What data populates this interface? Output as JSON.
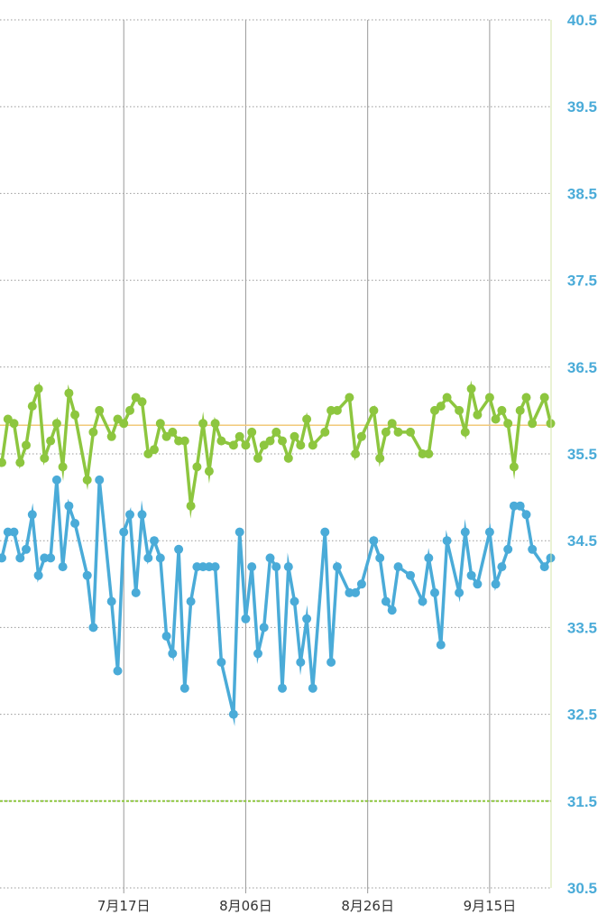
{
  "chart_data": {
    "type": "line",
    "title": "",
    "xlabel": "",
    "ylabel": "",
    "ylim": [
      30.5,
      40.5
    ],
    "yticks": [
      "40.5",
      "39.5",
      "38.5",
      "37.5",
      "36.5",
      "35.5",
      "34.5",
      "33.5",
      "32.5",
      "31.5",
      "30.5"
    ],
    "xticks": [
      {
        "label": "7月17日",
        "day": 20
      },
      {
        "label": "8月06日",
        "day": 40
      },
      {
        "label": "8月26日",
        "day": 60
      },
      {
        "label": "9月15日",
        "day": 80
      }
    ],
    "xlim": [
      0,
      90
    ],
    "grid": true,
    "legend": "none",
    "reference_lines": [
      {
        "value": 35.83,
        "color": "#f2c97a",
        "style": "solid"
      },
      {
        "value": 31.5,
        "color": "#8dc63f",
        "style": "dashed"
      }
    ],
    "series": [
      {
        "color": "#8dc63f",
        "points": [
          [
            0,
            35.4
          ],
          [
            1,
            35.9
          ],
          [
            2,
            35.85
          ],
          [
            3,
            35.4
          ],
          [
            4,
            35.6
          ],
          [
            5,
            36.05
          ],
          [
            6,
            36.25
          ],
          [
            7,
            35.45
          ],
          [
            8,
            35.65
          ],
          [
            9,
            35.85
          ],
          [
            10,
            35.35
          ],
          [
            11,
            36.2
          ],
          [
            12,
            35.95
          ],
          [
            14,
            35.2
          ],
          [
            15,
            35.75
          ],
          [
            16,
            36.0
          ],
          [
            18,
            35.7
          ],
          [
            19,
            35.9
          ],
          [
            20,
            35.85
          ],
          [
            21,
            36.0
          ],
          [
            22,
            36.15
          ],
          [
            23,
            36.1
          ],
          [
            24,
            35.5
          ],
          [
            25,
            35.55
          ],
          [
            26,
            35.85
          ],
          [
            27,
            35.7
          ],
          [
            28,
            35.75
          ],
          [
            29,
            35.65
          ],
          [
            30,
            35.65
          ],
          [
            31,
            34.9
          ],
          [
            32,
            35.35
          ],
          [
            33,
            35.85
          ],
          [
            34,
            35.3
          ],
          [
            35,
            35.85
          ],
          [
            36,
            35.65
          ],
          [
            38,
            35.6
          ],
          [
            39,
            35.7
          ],
          [
            40,
            35.6
          ],
          [
            41,
            35.75
          ],
          [
            42,
            35.45
          ],
          [
            43,
            35.6
          ],
          [
            44,
            35.65
          ],
          [
            45,
            35.75
          ],
          [
            46,
            35.65
          ],
          [
            47,
            35.45
          ],
          [
            48,
            35.7
          ],
          [
            49,
            35.6
          ],
          [
            50,
            35.9
          ],
          [
            51,
            35.6
          ],
          [
            53,
            35.75
          ],
          [
            54,
            36.0
          ],
          [
            55,
            36.0
          ],
          [
            57,
            36.15
          ],
          [
            58,
            35.5
          ],
          [
            59,
            35.7
          ],
          [
            61,
            36.0
          ],
          [
            62,
            35.45
          ],
          [
            63,
            35.75
          ],
          [
            64,
            35.85
          ],
          [
            65,
            35.75
          ],
          [
            67,
            35.75
          ],
          [
            69,
            35.5
          ],
          [
            70,
            35.5
          ],
          [
            71,
            36.0
          ],
          [
            72,
            36.05
          ],
          [
            73,
            36.15
          ],
          [
            75,
            36.0
          ],
          [
            76,
            35.75
          ],
          [
            77,
            36.25
          ],
          [
            78,
            35.95
          ],
          [
            80,
            36.15
          ],
          [
            81,
            35.9
          ],
          [
            82,
            36.0
          ],
          [
            83,
            35.85
          ],
          [
            84,
            35.35
          ],
          [
            85,
            36.0
          ],
          [
            86,
            36.15
          ],
          [
            87,
            35.85
          ],
          [
            89,
            36.15
          ],
          [
            90,
            35.85
          ]
        ]
      },
      {
        "color": "#4aabd8",
        "points": [
          [
            0,
            34.3
          ],
          [
            1,
            34.6
          ],
          [
            2,
            34.6
          ],
          [
            3,
            34.3
          ],
          [
            4,
            34.4
          ],
          [
            5,
            34.8
          ],
          [
            6,
            34.1
          ],
          [
            7,
            34.3
          ],
          [
            8,
            34.3
          ],
          [
            9,
            35.2
          ],
          [
            10,
            34.2
          ],
          [
            11,
            34.9
          ],
          [
            12,
            34.7
          ],
          [
            14,
            34.1
          ],
          [
            15,
            33.5
          ],
          [
            16,
            35.2
          ],
          [
            18,
            33.8
          ],
          [
            19,
            33.0
          ],
          [
            20,
            34.6
          ],
          [
            21,
            34.8
          ],
          [
            22,
            33.9
          ],
          [
            23,
            34.8
          ],
          [
            24,
            34.3
          ],
          [
            25,
            34.5
          ],
          [
            26,
            34.3
          ],
          [
            27,
            33.4
          ],
          [
            28,
            33.2
          ],
          [
            29,
            34.4
          ],
          [
            30,
            32.8
          ],
          [
            31,
            33.8
          ],
          [
            32,
            34.2
          ],
          [
            33,
            34.2
          ],
          [
            34,
            34.2
          ],
          [
            35,
            34.2
          ],
          [
            36,
            33.1
          ],
          [
            38,
            32.5
          ],
          [
            39,
            34.6
          ],
          [
            40,
            33.6
          ],
          [
            41,
            34.2
          ],
          [
            42,
            33.2
          ],
          [
            43,
            33.5
          ],
          [
            44,
            34.3
          ],
          [
            45,
            34.2
          ],
          [
            46,
            32.8
          ],
          [
            47,
            34.2
          ],
          [
            48,
            33.8
          ],
          [
            49,
            33.1
          ],
          [
            50,
            33.6
          ],
          [
            51,
            32.8
          ],
          [
            53,
            34.6
          ],
          [
            54,
            33.1
          ],
          [
            55,
            34.2
          ],
          [
            57,
            33.9
          ],
          [
            58,
            33.9
          ],
          [
            59,
            34.0
          ],
          [
            61,
            34.5
          ],
          [
            62,
            34.3
          ],
          [
            63,
            33.8
          ],
          [
            64,
            33.7
          ],
          [
            65,
            34.2
          ],
          [
            67,
            34.1
          ],
          [
            69,
            33.8
          ],
          [
            70,
            34.3
          ],
          [
            71,
            33.9
          ],
          [
            72,
            33.3
          ],
          [
            73,
            34.5
          ],
          [
            75,
            33.9
          ],
          [
            76,
            34.6
          ],
          [
            77,
            34.1
          ],
          [
            78,
            34.0
          ],
          [
            80,
            34.6
          ],
          [
            81,
            34.0
          ],
          [
            82,
            34.2
          ],
          [
            83,
            34.4
          ],
          [
            84,
            34.9
          ],
          [
            85,
            34.9
          ],
          [
            86,
            34.8
          ],
          [
            87,
            34.4
          ],
          [
            89,
            34.2
          ],
          [
            90,
            34.3
          ]
        ]
      }
    ]
  }
}
